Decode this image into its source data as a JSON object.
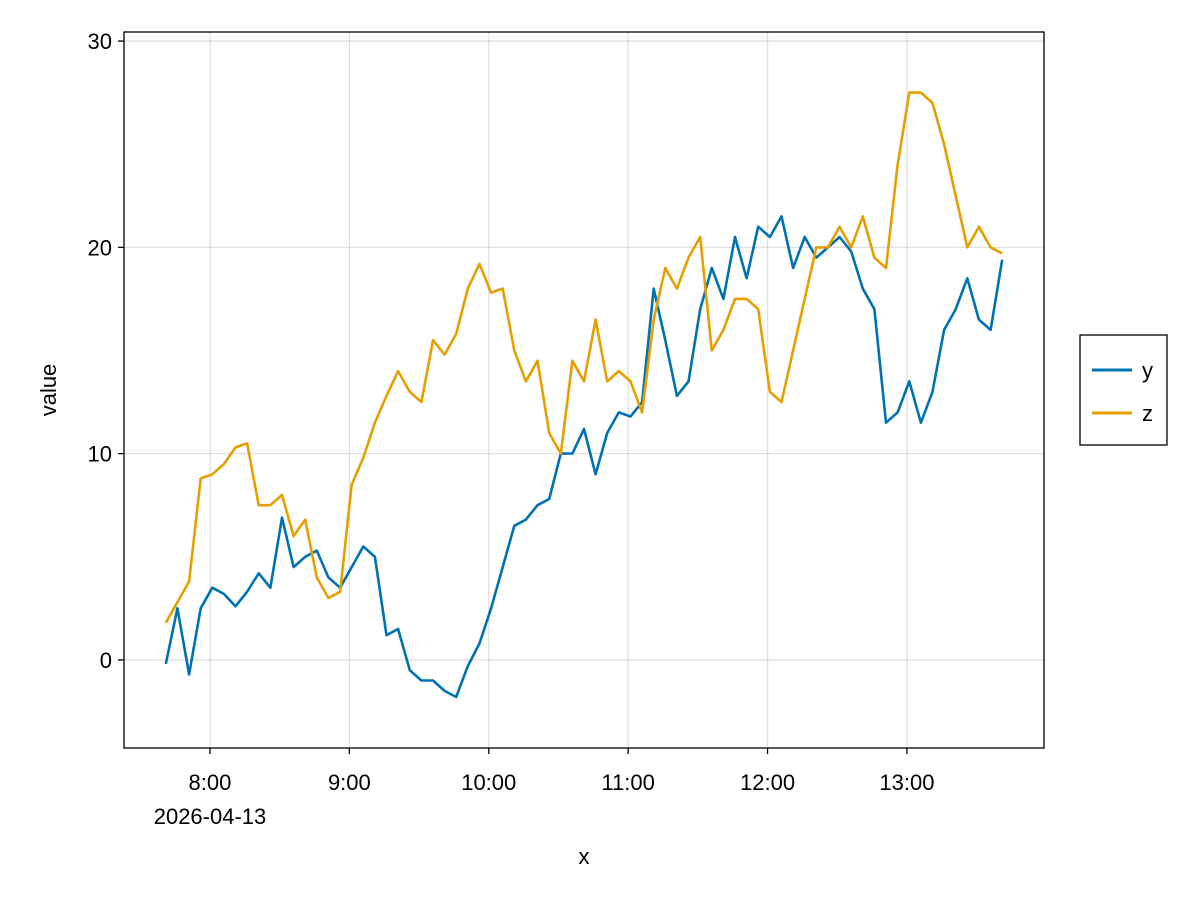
{
  "chart_data": {
    "type": "line",
    "title": "",
    "xlabel": "x",
    "ylabel": "value",
    "date": "2026-04-13",
    "xlim": [
      "07:23",
      "13:59"
    ],
    "ylim": [
      -4.27,
      30.44
    ],
    "x_ticks": [
      "8:00",
      "9:00",
      "10:00",
      "11:00",
      "12:00",
      "13:00"
    ],
    "x_tick_date_label": "2026-04-13",
    "y_ticks": [
      0,
      10,
      20,
      30
    ],
    "grid": true,
    "legend_position": "right",
    "x": [
      "07:41",
      "07:46",
      "07:51",
      "07:56",
      "08:01",
      "08:06",
      "08:11",
      "08:16",
      "08:21",
      "08:26",
      "08:31",
      "08:36",
      "08:41",
      "08:46",
      "08:51",
      "08:56",
      "09:01",
      "09:06",
      "09:11",
      "09:16",
      "09:21",
      "09:26",
      "09:31",
      "09:36",
      "09:41",
      "09:46",
      "09:51",
      "09:56",
      "10:01",
      "10:06",
      "10:11",
      "10:16",
      "10:21",
      "10:26",
      "10:31",
      "10:36",
      "10:41",
      "10:46",
      "10:51",
      "10:56",
      "11:01",
      "11:06",
      "11:11",
      "11:16",
      "11:21",
      "11:26",
      "11:31",
      "11:36",
      "11:41",
      "11:46",
      "11:51",
      "11:56",
      "12:01",
      "12:06",
      "12:11",
      "12:16",
      "12:21",
      "12:26",
      "12:31",
      "12:36",
      "12:41",
      "12:46",
      "12:51",
      "12:56",
      "13:01",
      "13:06",
      "13:11",
      "13:16",
      "13:21",
      "13:26",
      "13:31",
      "13:36",
      "13:41"
    ],
    "series": [
      {
        "name": "y",
        "color": "#0072B2",
        "values": [
          -0.2,
          2.5,
          -0.7,
          2.5,
          3.5,
          3.2,
          2.6,
          3.3,
          4.2,
          3.5,
          6.9,
          4.5,
          5.0,
          5.3,
          4.0,
          3.5,
          4.5,
          5.5,
          5.0,
          1.2,
          1.5,
          -0.5,
          -1.0,
          -1.0,
          -1.5,
          -1.8,
          -0.3,
          0.8,
          2.5,
          4.5,
          6.5,
          6.8,
          7.5,
          7.8,
          10.0,
          10.0,
          11.2,
          9.0,
          11.0,
          12.0,
          11.8,
          12.5,
          18.0,
          15.5,
          12.8,
          13.5,
          17.0,
          19.0,
          17.5,
          20.5,
          18.5,
          21.0,
          20.5,
          21.5,
          19.0,
          20.5,
          19.5,
          20.0,
          20.5,
          19.8,
          18.0,
          17.0,
          11.5,
          12.0,
          13.5,
          11.5,
          13.0,
          16.0,
          17.0,
          18.5,
          16.5,
          16.0,
          19.4
        ]
      },
      {
        "name": "z",
        "color": "#E69F00",
        "values": [
          1.8,
          2.8,
          3.8,
          8.8,
          9.0,
          9.5,
          10.3,
          10.5,
          7.5,
          7.5,
          8.0,
          6.0,
          6.8,
          4.0,
          3.0,
          3.3,
          8.5,
          9.8,
          11.5,
          12.8,
          14.0,
          13.0,
          12.5,
          15.5,
          14.8,
          15.8,
          18.0,
          19.2,
          17.8,
          18.0,
          15.0,
          13.5,
          14.5,
          11.0,
          10.0,
          14.5,
          13.5,
          16.5,
          13.5,
          14.0,
          13.5,
          12.0,
          16.5,
          19.0,
          18.0,
          19.5,
          20.5,
          15.0,
          16.0,
          17.5,
          17.5,
          17.0,
          13.0,
          12.5,
          15.0,
          17.5,
          20.0,
          20.0,
          21.0,
          20.0,
          21.5,
          19.5,
          19.0,
          24.0,
          27.5,
          27.5,
          27.0,
          25.0,
          22.5,
          20.0,
          21.0,
          20.0,
          19.7
        ]
      }
    ]
  }
}
